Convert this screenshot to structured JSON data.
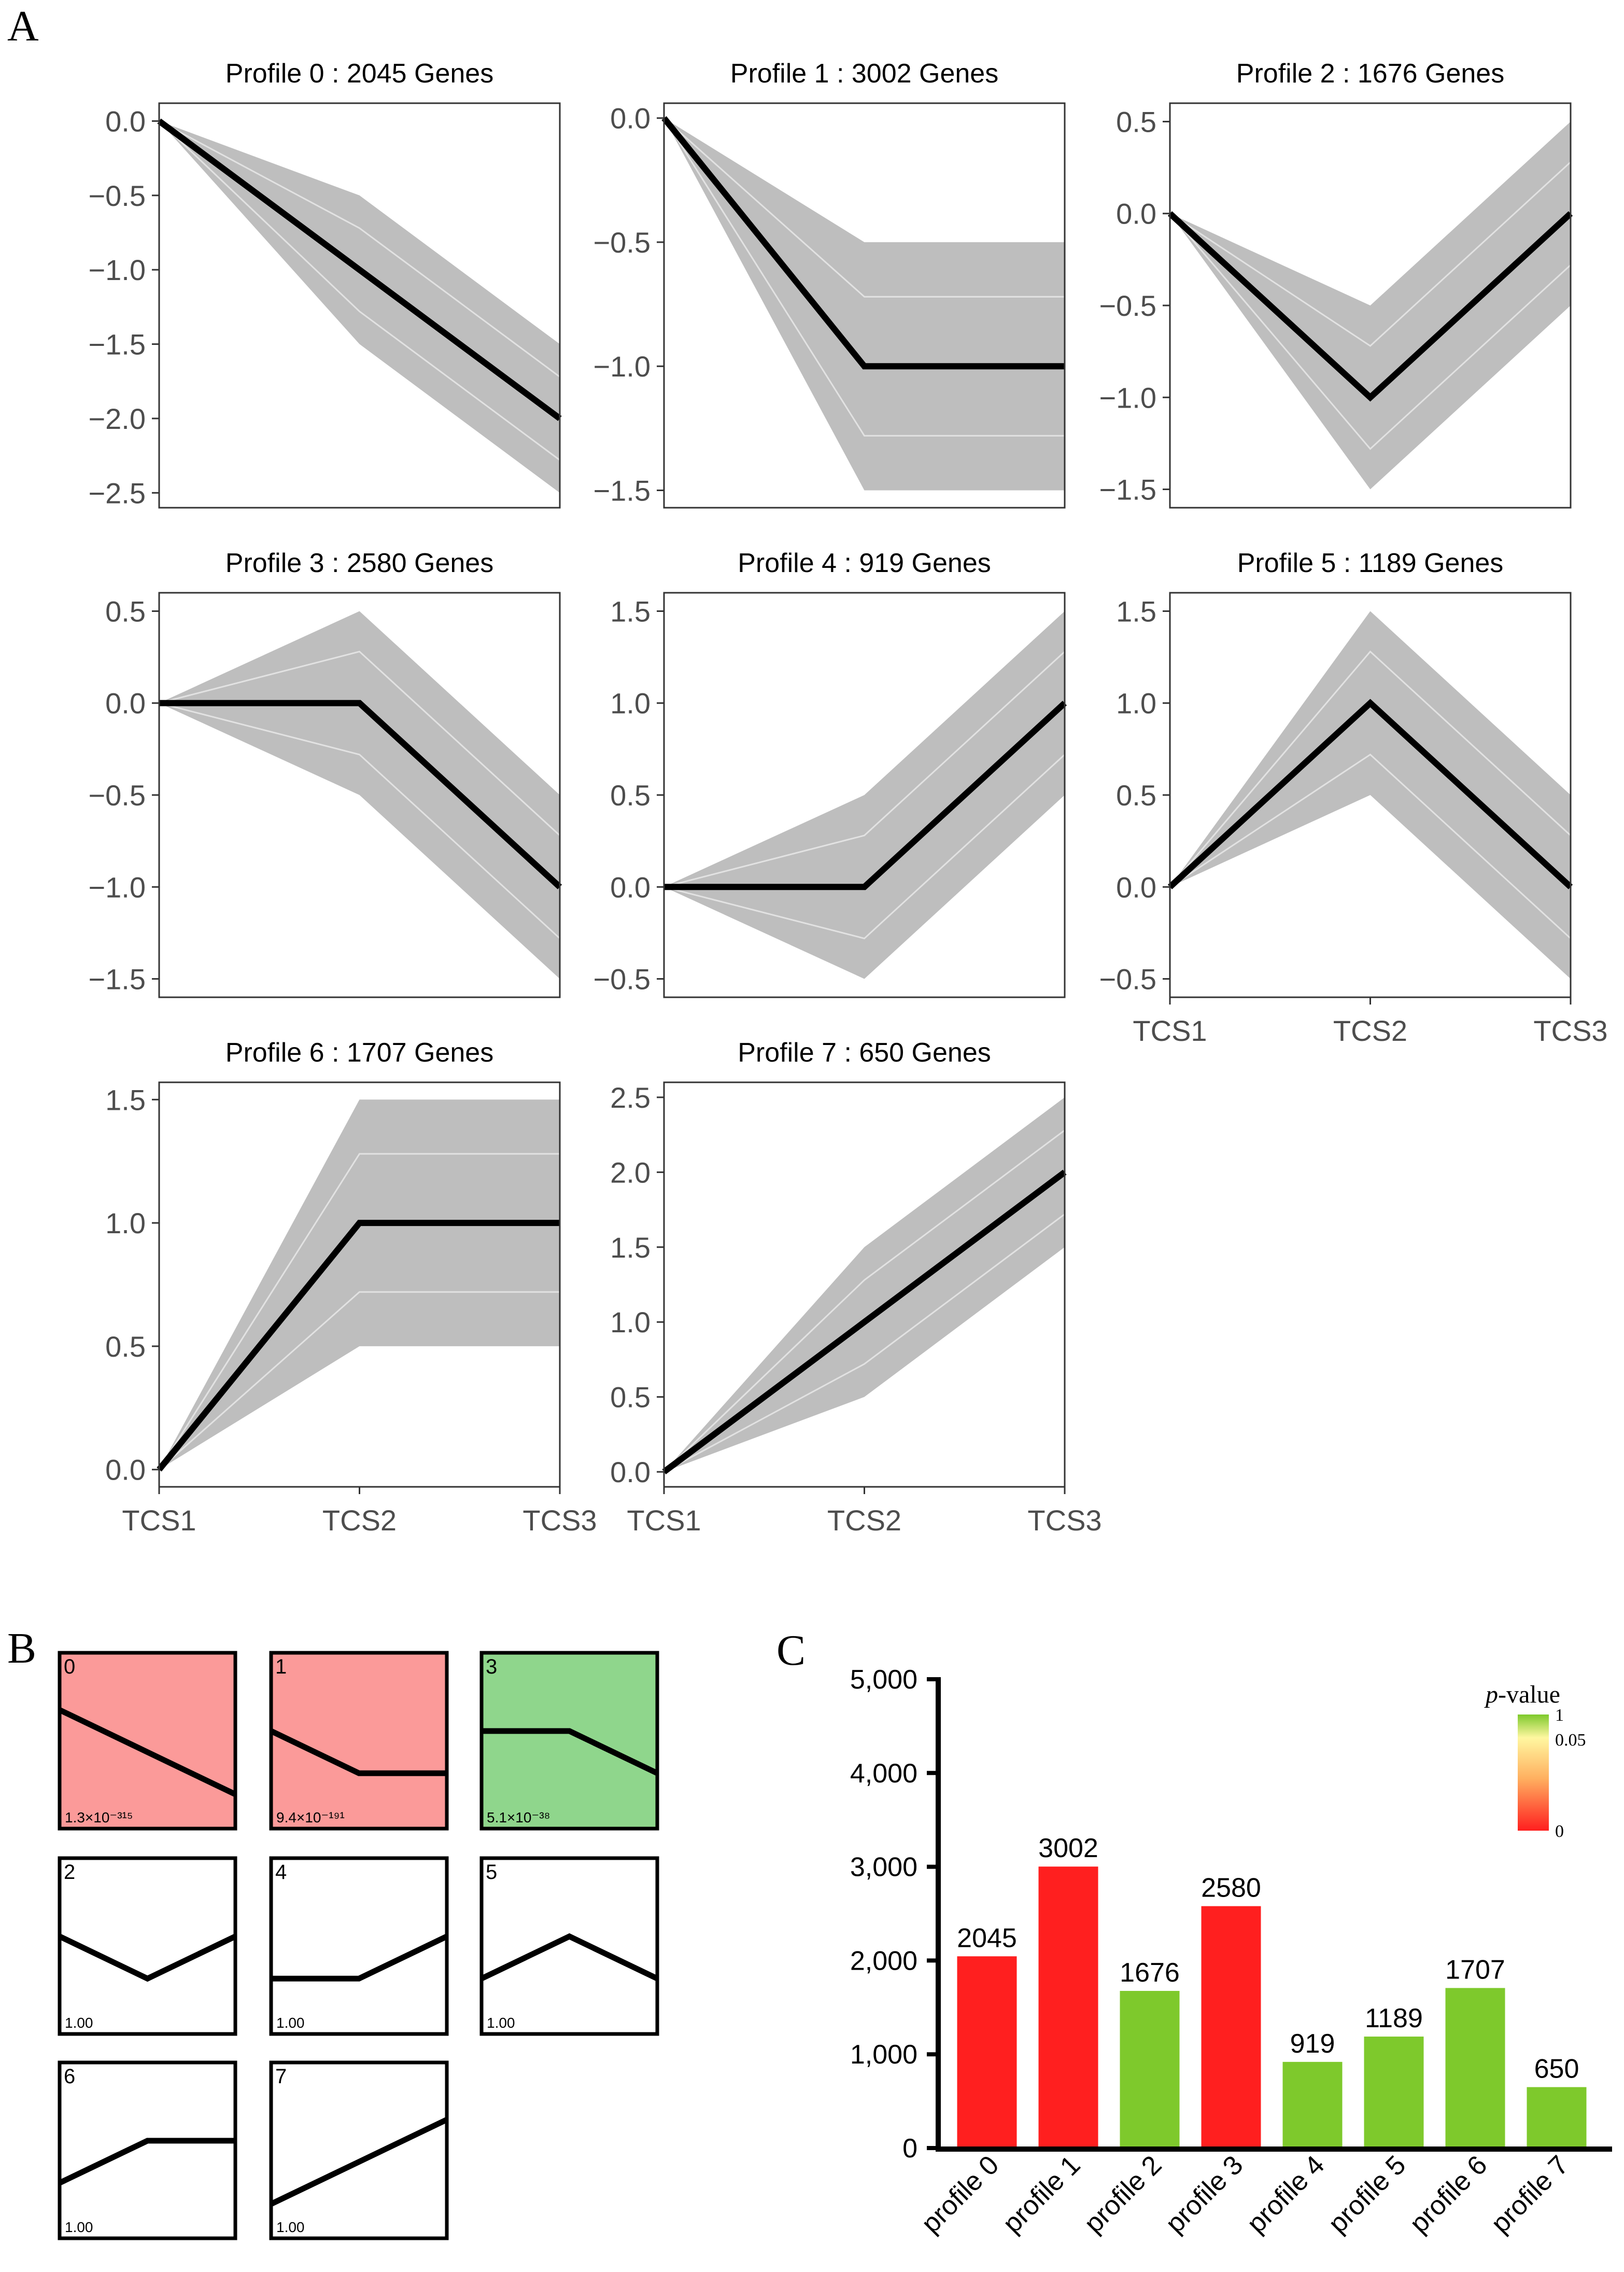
{
  "panels": {
    "a": "A",
    "b": "B",
    "c": "C"
  },
  "chart_data": [
    {
      "panel": "A",
      "type": "line",
      "xcategories": [
        "TCS1",
        "TCS2",
        "TCS3"
      ],
      "profiles": [
        {
          "id": 0,
          "title": "Profile 0 : 2045 Genes",
          "model": [
            0,
            -1,
            -2
          ],
          "band_upper": [
            0,
            -0.5,
            -1.5
          ],
          "band_lower": [
            0,
            -1.5,
            -2.5
          ],
          "ylim": [
            -2.6,
            0.12
          ],
          "yticks": [
            0.0,
            -0.5,
            -1.0,
            -1.5,
            -2.0,
            -2.5
          ],
          "ytick_labels": [
            "0.0",
            "−0.5",
            "−1.0",
            "−1.5",
            "−2.0",
            "−2.5"
          ]
        },
        {
          "id": 1,
          "title": "Profile 1 : 3002 Genes",
          "model": [
            0,
            -1,
            -1
          ],
          "band_upper": [
            0,
            -0.5,
            -0.5
          ],
          "band_lower": [
            0,
            -1.5,
            -1.5
          ],
          "ylim": [
            -1.57,
            0.06
          ],
          "yticks": [
            0.0,
            -0.5,
            -1.0,
            -1.5
          ],
          "ytick_labels": [
            "0.0",
            "−0.5",
            "−1.0",
            "−1.5"
          ]
        },
        {
          "id": 2,
          "title": "Profile 2 : 1676 Genes",
          "model": [
            0,
            -1,
            0
          ],
          "band_upper": [
            0,
            -0.5,
            0.5
          ],
          "band_lower": [
            0,
            -1.5,
            -0.5
          ],
          "ylim": [
            -1.6,
            0.6
          ],
          "yticks": [
            0.5,
            0.0,
            -0.5,
            -1.0,
            -1.5
          ],
          "ytick_labels": [
            "0.5",
            "0.0",
            "−0.5",
            "−1.0",
            "−1.5"
          ]
        },
        {
          "id": 3,
          "title": "Profile 3 : 2580 Genes",
          "model": [
            0,
            0,
            -1
          ],
          "band_upper": [
            0,
            0.5,
            -0.5
          ],
          "band_lower": [
            0,
            -0.5,
            -1.5
          ],
          "ylim": [
            -1.6,
            0.6
          ],
          "yticks": [
            0.5,
            0.0,
            -0.5,
            -1.0,
            -1.5
          ],
          "ytick_labels": [
            "0.5",
            "0.0",
            "−0.5",
            "−1.0",
            "−1.5"
          ]
        },
        {
          "id": 4,
          "title": "Profile 4 : 919 Genes",
          "model": [
            0,
            0,
            1
          ],
          "band_upper": [
            0,
            0.5,
            1.5
          ],
          "band_lower": [
            0,
            -0.5,
            0.5
          ],
          "ylim": [
            -0.6,
            1.6
          ],
          "yticks": [
            1.5,
            1.0,
            0.5,
            0.0,
            -0.5
          ],
          "ytick_labels": [
            "1.5",
            "1.0",
            "0.5",
            "0.0",
            "−0.5"
          ]
        },
        {
          "id": 5,
          "title": "Profile 5 : 1189 Genes",
          "model": [
            0,
            1,
            0
          ],
          "band_upper": [
            0,
            1.5,
            0.5
          ],
          "band_lower": [
            0,
            0.5,
            -0.5
          ],
          "ylim": [
            -0.6,
            1.6
          ],
          "yticks": [
            1.5,
            1.0,
            0.5,
            0.0,
            -0.5
          ],
          "ytick_labels": [
            "1.5",
            "1.0",
            "0.5",
            "0.0",
            "−0.5"
          ]
        },
        {
          "id": 6,
          "title": "Profile 6 : 1707 Genes",
          "model": [
            0,
            1,
            1
          ],
          "band_upper": [
            0,
            1.5,
            1.5
          ],
          "band_lower": [
            0,
            0.5,
            0.5
          ],
          "ylim": [
            -0.07,
            1.57
          ],
          "yticks": [
            1.5,
            1.0,
            0.5,
            0.0
          ],
          "ytick_labels": [
            "1.5",
            "1.0",
            "0.5",
            "0.0"
          ]
        },
        {
          "id": 7,
          "title": "Profile 7 : 650 Genes",
          "model": [
            0,
            1,
            2
          ],
          "band_upper": [
            0,
            1.5,
            2.5
          ],
          "band_lower": [
            0,
            0.5,
            1.5
          ],
          "ylim": [
            -0.1,
            2.6
          ],
          "yticks": [
            2.5,
            2.0,
            1.5,
            1.0,
            0.5,
            0.0
          ],
          "ytick_labels": [
            "2.5",
            "2.0",
            "1.5",
            "1.0",
            "0.5",
            "0.0"
          ]
        }
      ],
      "line_color": "#000000",
      "band_color": "#bebebe"
    },
    {
      "panel": "B",
      "type": "profile-grid",
      "tiles": [
        {
          "id": "0",
          "model": [
            0,
            -1,
            -2
          ],
          "pvalue": "1.3×10⁻³¹⁵",
          "fill": "#fb9a99"
        },
        {
          "id": "1",
          "model": [
            0,
            -1,
            -1
          ],
          "pvalue": "9.4×10⁻¹⁹¹",
          "fill": "#fb9a99"
        },
        {
          "id": "3",
          "model": [
            0,
            0,
            -1
          ],
          "pvalue": "5.1×10⁻³⁸",
          "fill": "#8fd68c"
        },
        {
          "id": "2",
          "model": [
            0,
            -1,
            0
          ],
          "pvalue": "1.00",
          "fill": "#ffffff"
        },
        {
          "id": "4",
          "model": [
            0,
            0,
            1
          ],
          "pvalue": "1.00",
          "fill": "#ffffff"
        },
        {
          "id": "5",
          "model": [
            0,
            1,
            0
          ],
          "pvalue": "1.00",
          "fill": "#ffffff"
        },
        {
          "id": "6",
          "model": [
            0,
            1,
            1
          ],
          "pvalue": "1.00",
          "fill": "#ffffff"
        },
        {
          "id": "7",
          "model": [
            0,
            1,
            2
          ],
          "pvalue": "1.00",
          "fill": "#ffffff"
        }
      ]
    },
    {
      "panel": "C",
      "type": "bar",
      "categories": [
        "profile 0",
        "profile 1",
        "profile 2",
        "profile 3",
        "profile 4",
        "profile 5",
        "profile 6",
        "profile 7"
      ],
      "values": [
        2045,
        3002,
        1676,
        2580,
        919,
        1189,
        1707,
        650
      ],
      "value_labels": [
        "2045",
        "3002",
        "1676",
        "2580",
        "919",
        "1189",
        "1707",
        "650"
      ],
      "bar_colors": [
        "#ff1f1f",
        "#ff1f1f",
        "#7ec92c",
        "#ff1f1f",
        "#7ec92c",
        "#7ec92c",
        "#7ec92c",
        "#7ec92c"
      ],
      "ylim": [
        0,
        5000
      ],
      "yticks": [
        0,
        1000,
        2000,
        3000,
        4000,
        5000
      ],
      "ytick_labels": [
        "0",
        "1,000",
        "2,000",
        "3,000",
        "4,000",
        "5,000"
      ],
      "legend": {
        "title_italic": "p",
        "title_rest": "-value",
        "tick_labels": [
          "1",
          "0.05",
          "0"
        ],
        "colors": {
          "top": "#7ec92c",
          "mid": "#fff7a0",
          "bottom": "#ff1f1f"
        },
        "placement": "top-right"
      }
    }
  ]
}
